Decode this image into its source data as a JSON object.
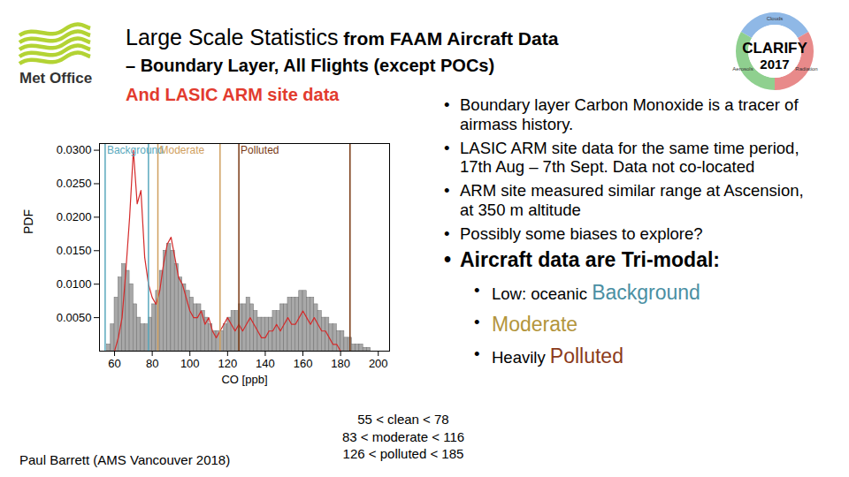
{
  "page": {
    "title_large": "Large Scale Statistics",
    "title_small": " from FAAM Aircraft Data",
    "subtitle": "– Boundary Layer, All Flights (except POCs)",
    "subtitle2": "And LASIC ARM site data",
    "logo_left": "Met Office",
    "logo_right": {
      "title": "CLARIFY",
      "year": "2017",
      "labels": [
        "Clouds",
        "Aerosols",
        "Radiation"
      ]
    },
    "bullets": [
      "Boundary layer Carbon Monoxide is a tracer of airmass history.",
      "LASIC ARM site data for the same time period, 17th Aug – 7th Sept. Data not co-located",
      "ARM site measured similar range at Ascension, at 350 m altitude",
      "Possibly some biases to explore?"
    ],
    "bullet_main": "Aircraft data are  Tri-modal:",
    "sub_bullets": [
      [
        {
          "text": "Low: oceanic "
        },
        {
          "text": "Background",
          "color": "#4a8fa3"
        }
      ],
      [
        {
          "text": "Moderate",
          "color": "#b3953c"
        }
      ],
      [
        {
          "text": "Heavily "
        },
        {
          "text": "Polluted",
          "color": "#8b3a1a"
        }
      ]
    ],
    "caption": [
      "55 < clean < 78",
      "83 < moderate < 116",
      "126 < polluted < 185"
    ],
    "author": "Paul Barrett (AMS Vancouver 2018)"
  },
  "chart_data": {
    "type": "histogram",
    "x_label": "CO [ppb]",
    "y_label": "PDF",
    "bins": [
      56,
      58,
      60,
      62,
      64,
      66,
      68,
      70,
      72,
      74,
      76,
      78,
      80,
      82,
      84,
      86,
      88,
      90,
      92,
      94,
      96,
      98,
      100,
      102,
      104,
      106,
      108,
      110,
      112,
      114,
      116,
      118,
      120,
      122,
      124,
      126,
      128,
      130,
      132,
      134,
      136,
      138,
      140,
      142,
      144,
      146,
      148,
      150,
      152,
      154,
      156,
      158,
      160,
      162,
      164,
      166,
      168,
      170,
      172,
      174,
      176,
      178,
      180,
      182,
      184,
      186,
      188,
      190,
      192,
      194,
      196
    ],
    "counts": [
      0.001,
      0.004,
      0.008,
      0.011,
      0.013,
      0.012,
      0.01,
      0.007,
      0.005,
      0.004,
      0.004,
      0.005,
      0.007,
      0.009,
      0.012,
      0.015,
      0.016,
      0.015,
      0.013,
      0.011,
      0.01,
      0.009,
      0.008,
      0.007,
      0.007,
      0.006,
      0.005,
      0.004,
      0.003,
      0.003,
      0.003,
      0.004,
      0.005,
      0.006,
      0.006,
      0.007,
      0.007,
      0.008,
      0.007,
      0.006,
      0.005,
      0.005,
      0.005,
      0.005,
      0.006,
      0.006,
      0.007,
      0.007,
      0.008,
      0.008,
      0.008,
      0.009,
      0.009,
      0.008,
      0.008,
      0.007,
      0.006,
      0.005,
      0.005,
      0.004,
      0.004,
      0.003,
      0.003,
      0.002,
      0.002,
      0.001,
      0.001,
      0.001,
      0.0005,
      0.0005
    ],
    "color": "#a8a8a8",
    "overlay": {
      "type": "line",
      "color": "#d42a2a",
      "x": [
        60,
        62,
        64,
        66,
        68,
        70,
        72,
        74,
        76,
        78,
        80,
        82,
        84,
        86,
        88,
        90,
        92,
        94,
        96,
        98,
        100,
        102,
        104,
        106,
        108,
        110,
        112,
        114,
        116,
        118,
        120,
        122,
        124,
        126,
        128,
        130,
        132,
        134,
        136,
        138,
        140,
        142,
        144,
        146,
        148,
        150,
        152,
        154,
        156,
        158,
        160,
        162,
        164,
        166,
        168,
        170,
        172,
        174,
        176,
        178,
        180
      ],
      "values": [
        0.0,
        0.002,
        0.005,
        0.012,
        0.02,
        0.03,
        0.022,
        0.024,
        0.014,
        0.01,
        0.008,
        0.007,
        0.009,
        0.013,
        0.016,
        0.017,
        0.014,
        0.011,
        0.01,
        0.008,
        0.006,
        0.005,
        0.005,
        0.006,
        0.004,
        0.005,
        0.003,
        0.002,
        0.003,
        0.004,
        0.005,
        0.004,
        0.003,
        0.004,
        0.003,
        0.004,
        0.005,
        0.004,
        0.003,
        0.002,
        0.002,
        0.003,
        0.003,
        0.004,
        0.003,
        0.004,
        0.005,
        0.004,
        0.004,
        0.005,
        0.006,
        0.005,
        0.004,
        0.005,
        0.004,
        0.003,
        0.003,
        0.002,
        0.001,
        0.001,
        0.0
      ]
    },
    "regions": [
      {
        "label": "Background",
        "color": "#5aa9bd",
        "lo": 55,
        "hi": 78
      },
      {
        "label": "Moderate",
        "color": "#d0a060",
        "lo": 83,
        "hi": 116
      },
      {
        "label": "Polluted",
        "color": "#7a3a14",
        "lo": 126,
        "hi": 185
      }
    ],
    "xlim": [
      52,
      206
    ],
    "xticks": [
      60,
      80,
      100,
      120,
      140,
      160,
      180,
      200
    ],
    "ylim": [
      0,
      0.031
    ],
    "yticks": [
      {
        "value": 0.005,
        "label": "0.0050"
      },
      {
        "value": 0.01,
        "label": "0.0100"
      },
      {
        "value": 0.015,
        "label": "0.0150"
      },
      {
        "value": 0.02,
        "label": "0.0200"
      },
      {
        "value": 0.025,
        "label": "0.0250"
      },
      {
        "value": 0.03,
        "label": "0.0300"
      }
    ],
    "grid": false
  }
}
